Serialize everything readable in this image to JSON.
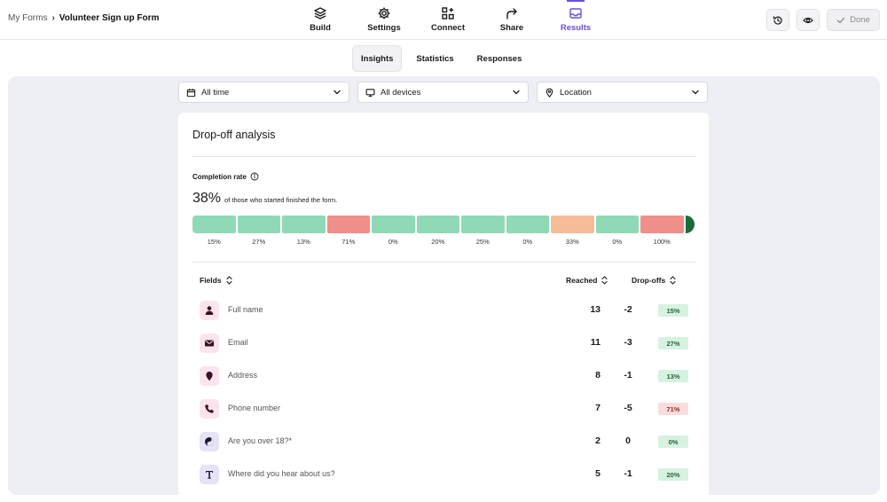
{
  "breadcrumb": {
    "parent": "My Forms",
    "separator": "›",
    "current": "Volunteer Sign up Form"
  },
  "nav": [
    {
      "label": "Build",
      "icon": "layers-icon"
    },
    {
      "label": "Settings",
      "icon": "gear-icon"
    },
    {
      "label": "Connect",
      "icon": "connect-icon"
    },
    {
      "label": "Share",
      "icon": "share-arrow-icon"
    },
    {
      "label": "Results",
      "icon": "inbox-icon",
      "active": true
    }
  ],
  "actions": {
    "history_icon": "history-icon",
    "preview_icon": "eye-icon",
    "done_label": "Done"
  },
  "subtabs": [
    {
      "label": "Insights",
      "active": true
    },
    {
      "label": "Statistics"
    },
    {
      "label": "Responses"
    }
  ],
  "filters": {
    "time": "All time",
    "devices": "All devices",
    "location": "Location"
  },
  "dropoff": {
    "title": "Drop-off analysis",
    "completion_label": "Completion rate",
    "completion_value": "38%",
    "completion_text": "of those who started finished the form.",
    "steps": [
      {
        "label": "15%",
        "status": "good"
      },
      {
        "label": "27%",
        "status": "good"
      },
      {
        "label": "13%",
        "status": "good"
      },
      {
        "label": "71%",
        "status": "bad"
      },
      {
        "label": "0%",
        "status": "good"
      },
      {
        "label": "20%",
        "status": "good"
      },
      {
        "label": "25%",
        "status": "good"
      },
      {
        "label": "0%",
        "status": "good"
      },
      {
        "label": "33%",
        "status": "warn"
      },
      {
        "label": "0%",
        "status": "good"
      },
      {
        "label": "100%",
        "status": "bad"
      }
    ]
  },
  "table": {
    "headers": {
      "fields": "Fields",
      "reached": "Reached",
      "dropoffs": "Drop-offs"
    },
    "rows": [
      {
        "name": "Full name",
        "icon": "person-icon",
        "reached": "13",
        "drop": "-2",
        "pct": "15%",
        "bad": false
      },
      {
        "name": "Email",
        "icon": "envelope-icon",
        "reached": "11",
        "drop": "-3",
        "pct": "27%",
        "bad": false
      },
      {
        "name": "Address",
        "icon": "map-pin-icon",
        "reached": "8",
        "drop": "-1",
        "pct": "13%",
        "bad": false
      },
      {
        "name": "Phone number",
        "icon": "phone-icon",
        "reached": "7",
        "drop": "-5",
        "pct": "71%",
        "bad": true
      },
      {
        "name": "Are you over 18?*",
        "icon": "yes-no-icon",
        "reached": "2",
        "drop": "0",
        "pct": "0%",
        "bad": false
      },
      {
        "name": "Where did you hear about us?",
        "icon": "text-t-icon",
        "reached": "5",
        "drop": "-1",
        "pct": "20%",
        "bad": false
      }
    ]
  },
  "colors": {
    "accent": "#6b4fd8",
    "good": "#8fd9b6",
    "warn": "#f5bc98",
    "bad": "#ef8f8a",
    "end_cap": "#1d6b3a"
  }
}
